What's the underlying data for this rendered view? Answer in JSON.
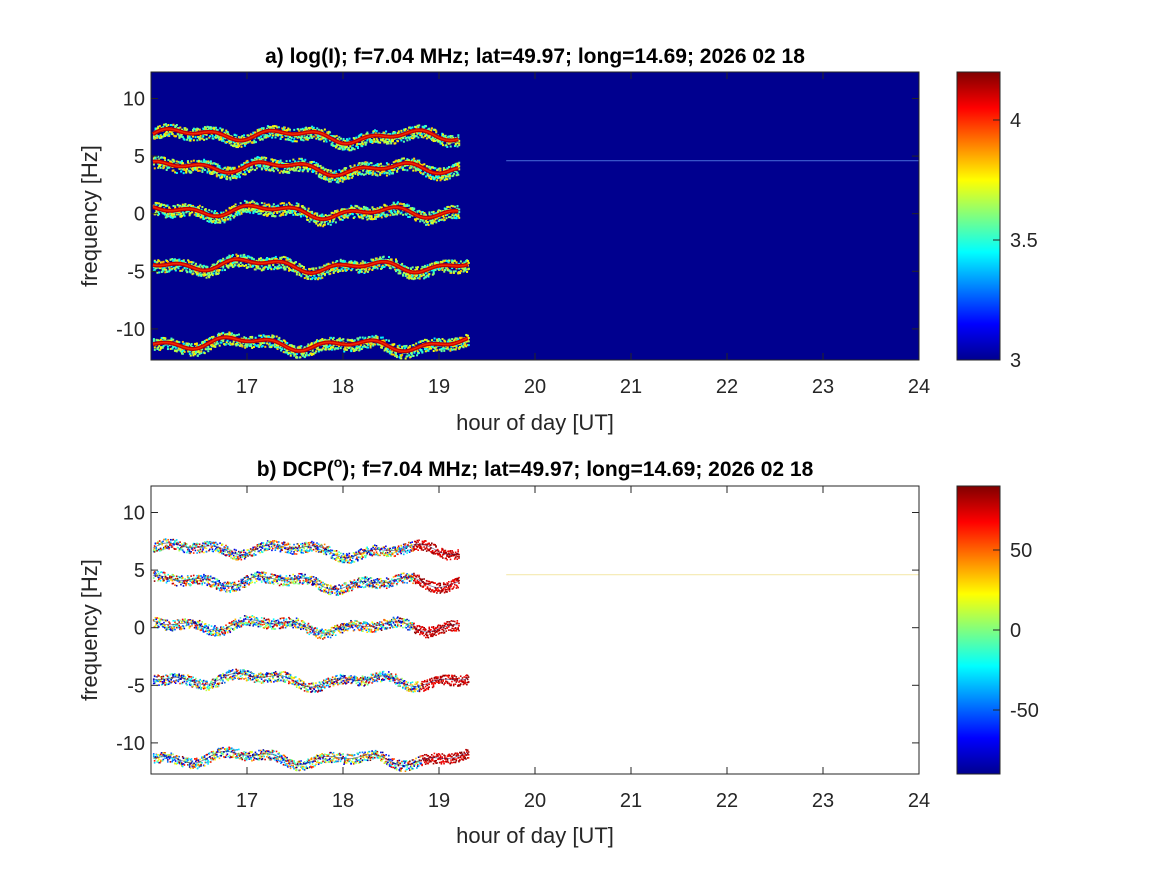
{
  "chart_data": [
    {
      "type": "heatmap",
      "title": "a) log(I); f=7.04 MHz;  lat=49.97; long=14.69; 2026 02 18",
      "xlabel": "hour of day [UT]",
      "ylabel": "frequency [Hz]",
      "xlim": [
        16,
        24
      ],
      "ylim": [
        -12.7,
        12.3
      ],
      "xticks": [
        "17",
        "18",
        "19",
        "20",
        "21",
        "22",
        "23",
        "24"
      ],
      "yticks": [
        "10",
        "5",
        "0",
        "-5",
        "-10"
      ],
      "background": "#00008f",
      "colorbar": {
        "range": [
          3,
          4.2
        ],
        "ticks": [
          "4",
          "3.5",
          "3"
        ],
        "colormap": "jet"
      },
      "traces": [
        {
          "center_hz": 6.8,
          "x_end": 19.2
        },
        {
          "center_hz": 4.0,
          "x_end": 19.2
        },
        {
          "center_hz": 0.2,
          "x_end": 19.2
        },
        {
          "center_hz": -4.5,
          "x_end": 19.3
        },
        {
          "center_hz": -11.3,
          "x_end": 19.3
        }
      ],
      "faint_line": {
        "y_hz": 4.6,
        "x_start": 19.7,
        "x_end": 24
      },
      "grid": false
    },
    {
      "type": "scatter",
      "title": "b) DCP(",
      "title_sup": "o",
      "title_rest": "); f=7.04 MHz;  lat=49.97; long=14.69; 2026 02 18",
      "xlabel": "hour of day [UT]",
      "ylabel": "frequency [Hz]",
      "xlim": [
        16,
        24
      ],
      "ylim": [
        -12.7,
        12.3
      ],
      "xticks": [
        "17",
        "18",
        "19",
        "20",
        "21",
        "22",
        "23",
        "24"
      ],
      "yticks": [
        "10",
        "5",
        "0",
        "-5",
        "-10"
      ],
      "background": "#ffffff",
      "colorbar": {
        "range": [
          -90,
          90
        ],
        "ticks": [
          "50",
          "0",
          "-50"
        ],
        "colormap": "jet"
      },
      "traces": [
        {
          "center_hz": 6.8,
          "x_end": 19.2
        },
        {
          "center_hz": 4.0,
          "x_end": 19.2
        },
        {
          "center_hz": 0.2,
          "x_end": 19.2
        },
        {
          "center_hz": -4.5,
          "x_end": 19.3
        },
        {
          "center_hz": -11.3,
          "x_end": 19.3
        }
      ],
      "faint_line": {
        "y_hz": 4.6,
        "x_start": 19.7,
        "x_end": 24
      },
      "grid": false
    }
  ]
}
